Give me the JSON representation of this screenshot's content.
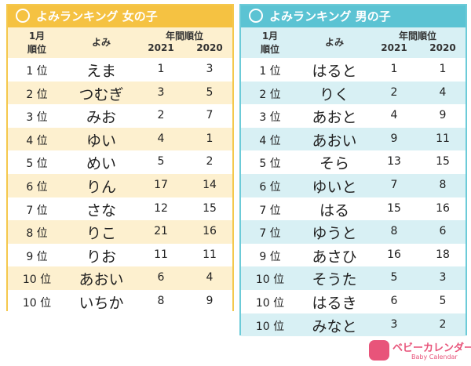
{
  "girls": {
    "title": "よみランキング 女の子",
    "header": {
      "rank": [
        "1月",
        "順位"
      ],
      "name": "よみ",
      "annual": "年間順位",
      "y1": 2021,
      "y2": 2020
    },
    "rows": [
      [
        "1 位",
        "えま",
        1,
        3
      ],
      [
        "2 位",
        "つむぎ",
        3,
        5
      ],
      [
        "3 位",
        "みお",
        2,
        7
      ],
      [
        "4 位",
        "ゆい",
        4,
        1
      ],
      [
        "5 位",
        "めい",
        5,
        2
      ],
      [
        "6 位",
        "りん",
        17,
        14
      ],
      [
        "7 位",
        "さな",
        12,
        15
      ],
      [
        "8 位",
        "りこ",
        21,
        16
      ],
      [
        "9 位",
        "りお",
        11,
        11
      ],
      [
        "10 位",
        "あおい",
        6,
        4
      ],
      [
        "10 位",
        "いちか",
        8,
        9
      ]
    ]
  },
  "boys": {
    "title": "よみランキング 男の子",
    "header": {
      "rank": [
        "1月",
        "順位"
      ],
      "name": "よみ",
      "annual": "年間順位",
      "y1": 2021,
      "y2": 2020
    },
    "rows": [
      [
        "1 位",
        "はると",
        1,
        1
      ],
      [
        "2 位",
        "りく",
        2,
        4
      ],
      [
        "3 位",
        "あおと",
        4,
        9
      ],
      [
        "4 位",
        "あおい",
        9,
        11
      ],
      [
        "5 位",
        "そら",
        13,
        15
      ],
      [
        "6 位",
        "ゆいと",
        7,
        8
      ],
      [
        "7 位",
        "はる",
        15,
        16
      ],
      [
        "7 位",
        "ゆうと",
        8,
        6
      ],
      [
        "9 位",
        "あさひ",
        16,
        18
      ],
      [
        "10 位",
        "そうた",
        5,
        3
      ],
      [
        "10 位",
        "はるき",
        6,
        5
      ],
      [
        "10 位",
        "みなと",
        3,
        2
      ]
    ]
  },
  "logo": {
    "name": "ベビーカレンダー",
    "sub": "Baby Calendar"
  }
}
